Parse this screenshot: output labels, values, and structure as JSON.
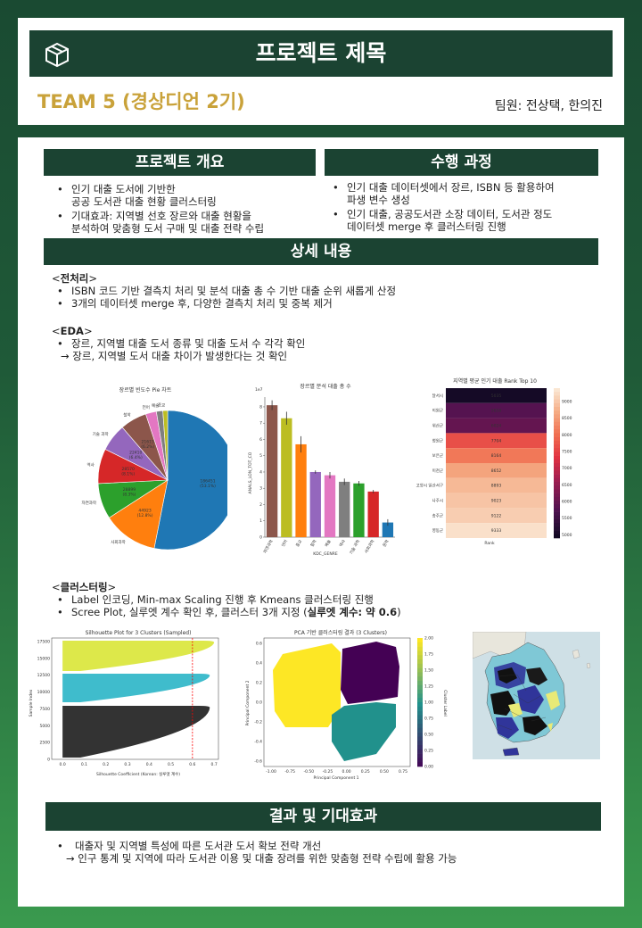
{
  "header": {
    "title": "프로젝트 제목",
    "icon": "box-3d-icon",
    "team": "TEAM 5 (경상디언 2기)",
    "members": "팀원: 전상택, 한의진",
    "accent": "#c9a23a",
    "bar_color": "#1b4332"
  },
  "overview": {
    "title": "프로젝트 개요",
    "items": [
      "인기 대출 도서에 기반한\n공공 도서관 대출 현황 클러스터링",
      "기대효과: 지역별 선호 장르와 대출 현황을\n분석하여 맞춤형 도서 구매 및 대출 전략 수립"
    ]
  },
  "process": {
    "title": "수행 과정",
    "items": [
      "인기 대출 데이터셋에서 장르, ISBN 등 활용하여\n파생 변수 생성",
      "인기 대출, 공공도서관 소장 데이터, 도서관 정도\n데이터셋 merge 후 클러스터링 진행"
    ]
  },
  "details": {
    "title": "상세 내용",
    "preprocess": {
      "heading_open": "<",
      "heading": "전처리",
      "heading_close": ">",
      "items": [
        "ISBN 코드 기반 결측치 처리 및 분석 대출 총 수 기반 대출 순위 새롭게 산정",
        "3개의 데이터셋 merge 후, 다양한 결측치 처리 및 중복 제거"
      ]
    },
    "eda": {
      "heading_open": "<",
      "heading": "EDA",
      "heading_close": ">",
      "item": "장르, 지역별 대출 도서 종류 및 대출 도서 수 각각 확인",
      "arrow_line": "→ 장르, 지역별 도서 대출 차이가 발생한다는 것 확인"
    },
    "clustering": {
      "heading_open": "<",
      "heading": "클러스터링",
      "heading_close": ">",
      "items": [
        "Label 인코딩, Min-max Scaling 진행 후 Kmeans 클러스터링 진행"
      ],
      "scree_prefix": "Scree Plot, 실루엣 계수 확인 후, 클러스터 3개 지정 (",
      "scree_bold": "실루엣 계수: 약 0.6",
      "scree_suffix": ")"
    }
  },
  "results": {
    "title": "결과 및 기대효과",
    "item": "대출자 및 지역별 특성에 따른 도서관 도서 확보 전략 개선",
    "arrow_line": "→ 인구 통계 및 지역에 따라 도서관 이용 및 대출 장려를 위한 맞춤형 전략 수립에 활용 가능"
  },
  "chart_data": [
    {
      "type": "pie",
      "title": "장르별 빈도수 Pie 차트",
      "categories": [
        "문학",
        "사회과학",
        "자연과학",
        "역사",
        "기술 과학",
        "철학",
        "언어",
        "예술",
        "종교"
      ],
      "values": [
        53.1,
        12.8,
        8.3,
        8.1,
        6.4,
        6.2,
        2.5,
        1.5,
        1.1
      ],
      "value_labels": [
        "186451\n(53.1%)",
        "44923\n(12.8%)",
        "28899\n(8.3%)",
        "28570\n(8.1%)",
        "22410\n(6.4%)",
        "21615\n(6.2%)",
        "",
        "",
        ""
      ],
      "colors": [
        "#1f77b4",
        "#ff7f0e",
        "#2ca02c",
        "#d62728",
        "#9467bd",
        "#8c564b",
        "#e377c2",
        "#7f7f7f",
        "#bcbd22"
      ]
    },
    {
      "type": "bar",
      "title": "장르별 분석 대출 총 수",
      "xlabel": "KDC_GENRE",
      "ylabel": "ANALS_LON_TOT_CO",
      "scale_label": "1e7",
      "categories": [
        "자연과학",
        "언어",
        "종교",
        "철학",
        "예술",
        "역사",
        "기술 과학",
        "사회과학",
        "문학"
      ],
      "values": [
        8.1,
        7.3,
        5.7,
        4.0,
        3.8,
        3.4,
        3.3,
        2.8,
        0.9
      ],
      "errors": [
        0.3,
        0.4,
        0.5,
        0.1,
        0.2,
        0.2,
        0.15,
        0.1,
        0.2
      ],
      "yticks": [
        0,
        1,
        2,
        3,
        4,
        5,
        6,
        7,
        8
      ],
      "ylim": [
        0,
        8.6
      ],
      "colors": [
        "#8c564b",
        "#bcbd22",
        "#ff7f0e",
        "#9467bd",
        "#e377c2",
        "#7f7f7f",
        "#2ca02c",
        "#d62728",
        "#1f77b4"
      ]
    },
    {
      "type": "heatmap",
      "title": "지역별 평균 인기 대출 Rank Top 10",
      "xlabel": "Rank",
      "rows": [
        "달서시",
        "이원군",
        "위산군",
        "청원군",
        "보은군",
        "이천군",
        "고양시 일산서구",
        "나주시",
        "송주군",
        "영동군"
      ],
      "values": [
        5035,
        5858,
        6024,
        7704,
        8164,
        8652,
        8893,
        9023,
        9122,
        9333
      ],
      "colorbar_ticks": [
        5000,
        5500,
        6000,
        6500,
        7000,
        7500,
        8000,
        8500,
        9000
      ]
    },
    {
      "type": "area",
      "title": "Silhouette Plot for 3 Clusters (Sampled)",
      "xlabel": "Silhouette Coefficient (Korean: 실루엣 계수)",
      "ylabel": "Sample Index",
      "xticks": [
        "0.0",
        "0.1",
        "0.2",
        "0.3",
        "0.4",
        "0.5",
        "0.6",
        "0.7"
      ],
      "yticks": [
        "0",
        "2500",
        "5000",
        "7500",
        "10000",
        "12500",
        "15000",
        "17500"
      ],
      "clusters": [
        {
          "name": "0",
          "color": "#333333"
        },
        {
          "name": "1",
          "color": "#3fbccc"
        },
        {
          "name": "2",
          "color": "#dde84a"
        }
      ],
      "avg_silhouette": 0.6
    },
    {
      "type": "scatter",
      "title": "PCA 기반 클러스터링 결과 (3 Clusters)",
      "xlabel": "Principal Component 1",
      "ylabel": "Principal Component 2",
      "colorbar_label": "Cluster Label",
      "xticks": [
        "-1.00",
        "-0.75",
        "-0.50",
        "-0.25",
        "0.00",
        "0.25",
        "0.50",
        "0.75"
      ],
      "yticks": [
        "-0.6",
        "-0.4",
        "-0.2",
        "0.0",
        "0.2",
        "0.4",
        "0.6"
      ],
      "colorbar_ticks": [
        "0.00",
        "0.25",
        "0.50",
        "0.75",
        "1.00",
        "1.25",
        "1.50",
        "1.75",
        "2.00"
      ],
      "clusters": [
        {
          "name": "0",
          "color": "#440154"
        },
        {
          "name": "1",
          "color": "#21918c"
        },
        {
          "name": "2",
          "color": "#fde725"
        }
      ]
    }
  ]
}
